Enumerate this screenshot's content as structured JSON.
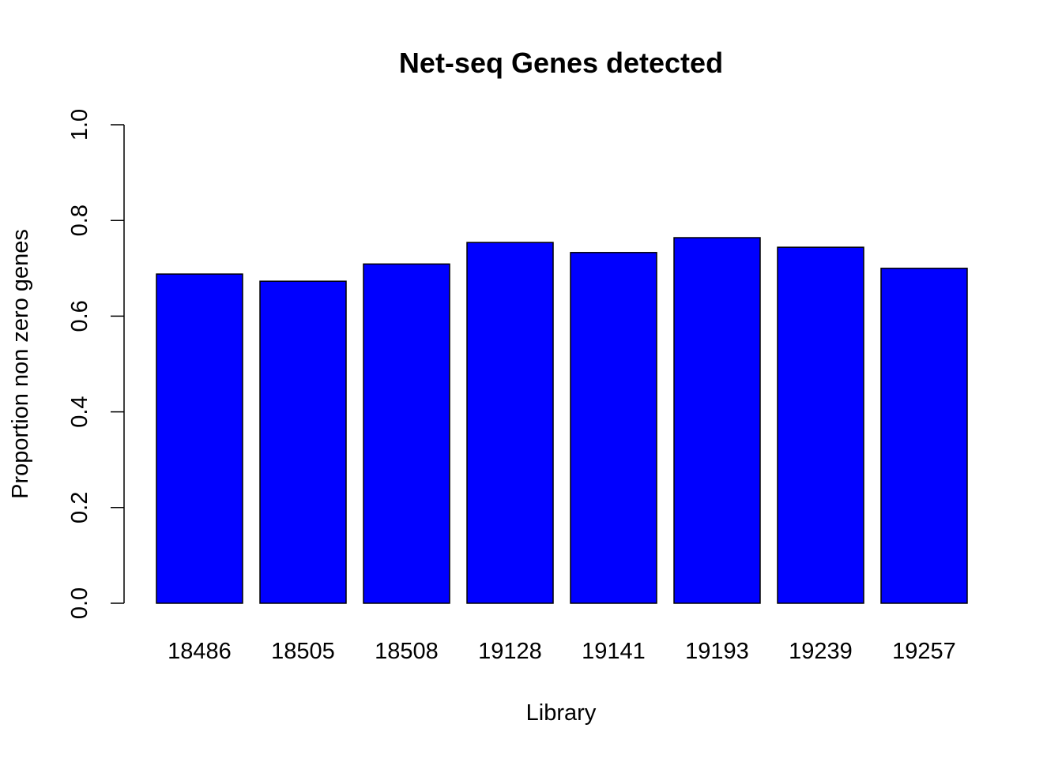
{
  "chart_data": {
    "type": "bar",
    "title": "Net-seq Genes detected",
    "xlabel": "Library",
    "ylabel": "Proportion non zero genes",
    "categories": [
      "18486",
      "18505",
      "18508",
      "19128",
      "19141",
      "19193",
      "19239",
      "19257"
    ],
    "values": [
      0.688,
      0.673,
      0.709,
      0.754,
      0.733,
      0.764,
      0.744,
      0.7
    ],
    "ylim": [
      0,
      1
    ],
    "yticks": [
      "0.0",
      "0.2",
      "0.4",
      "0.6",
      "0.8",
      "1.0"
    ],
    "grid": false,
    "legend": "none",
    "bar_color": "#0000ff",
    "bar_border_color": "#000000"
  }
}
